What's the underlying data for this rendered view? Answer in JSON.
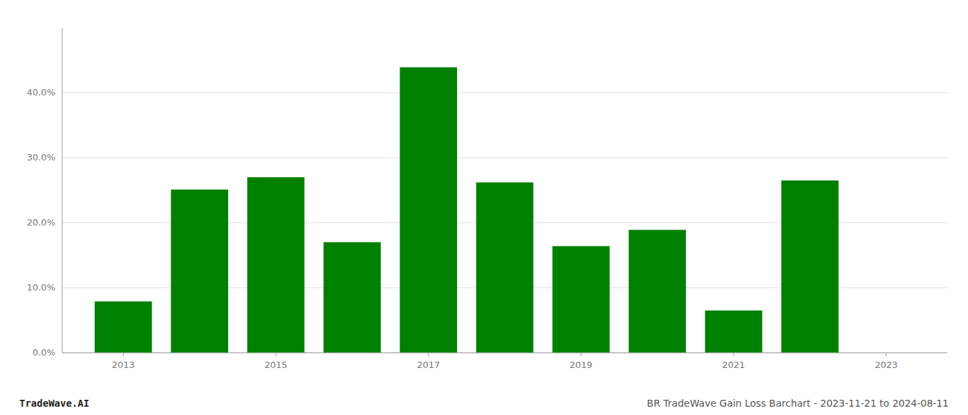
{
  "chart_data": {
    "type": "bar",
    "x": [
      2013,
      2014,
      2015,
      2016,
      2017,
      2018,
      2019,
      2020,
      2021,
      2022
    ],
    "values": [
      0.079,
      0.251,
      0.27,
      0.17,
      0.439,
      0.262,
      0.164,
      0.189,
      0.065,
      0.265
    ],
    "color": "#008000",
    "xlim": [
      2012.2,
      2023.8
    ],
    "xticks": [
      2013,
      2015,
      2017,
      2019,
      2021,
      2023
    ],
    "ylim": [
      0,
      0.5
    ],
    "yticks": [
      {
        "value": 0.0,
        "label": "0.0%"
      },
      {
        "value": 0.1,
        "label": "10.0%"
      },
      {
        "value": 0.2,
        "label": "20.0%"
      },
      {
        "value": 0.3,
        "label": "30.0%"
      },
      {
        "value": 0.4,
        "label": "40.0%"
      }
    ],
    "grid": true,
    "annotations": [
      "TradeWave.AI",
      "BR TradeWave Gain Loss Barchart - 2023-11-21 to 2024-08-11"
    ]
  }
}
